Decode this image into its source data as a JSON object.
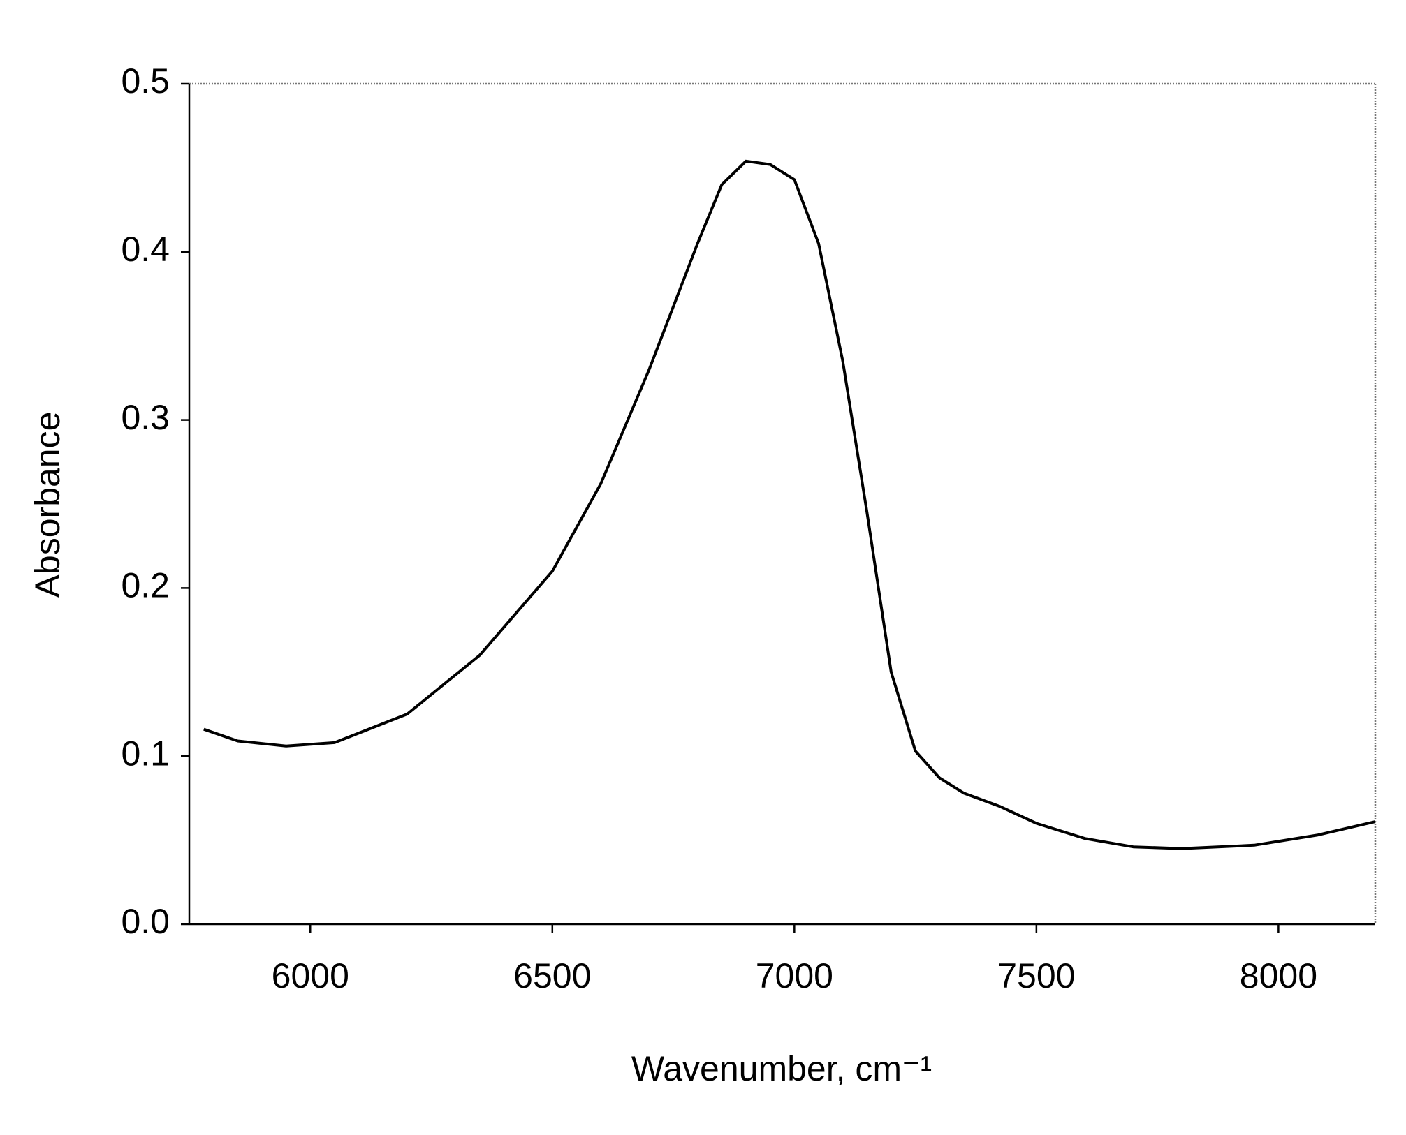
{
  "chart_data": {
    "type": "line",
    "xlabel": "Wavenumber, cm⁻¹",
    "ylabel": "Absorbance",
    "x": [
      5780,
      5850,
      5950,
      6050,
      6200,
      6350,
      6500,
      6600,
      6700,
      6800,
      6850,
      6900,
      6950,
      7000,
      7050,
      7100,
      7150,
      7200,
      7250,
      7300,
      7350,
      7425,
      7500,
      7600,
      7700,
      7800,
      7950,
      8080,
      8200
    ],
    "series": [
      {
        "color": "#000000",
        "values": [
          0.116,
          0.109,
          0.106,
          0.108,
          0.125,
          0.16,
          0.21,
          0.262,
          0.33,
          0.405,
          0.44,
          0.454,
          0.452,
          0.443,
          0.405,
          0.335,
          0.245,
          0.15,
          0.103,
          0.087,
          0.078,
          0.07,
          0.06,
          0.051,
          0.046,
          0.045,
          0.047,
          0.053,
          0.061
        ]
      }
    ],
    "xlim": [
      5750,
      8200
    ],
    "ylim": [
      0,
      0.5
    ],
    "xticks": [
      6000,
      6500,
      7000,
      7500,
      8000
    ],
    "yticks": [
      {
        "value": 0,
        "label": "0.0"
      },
      0.1,
      0.2,
      0.3,
      0.4,
      0.5
    ],
    "grid": false
  }
}
